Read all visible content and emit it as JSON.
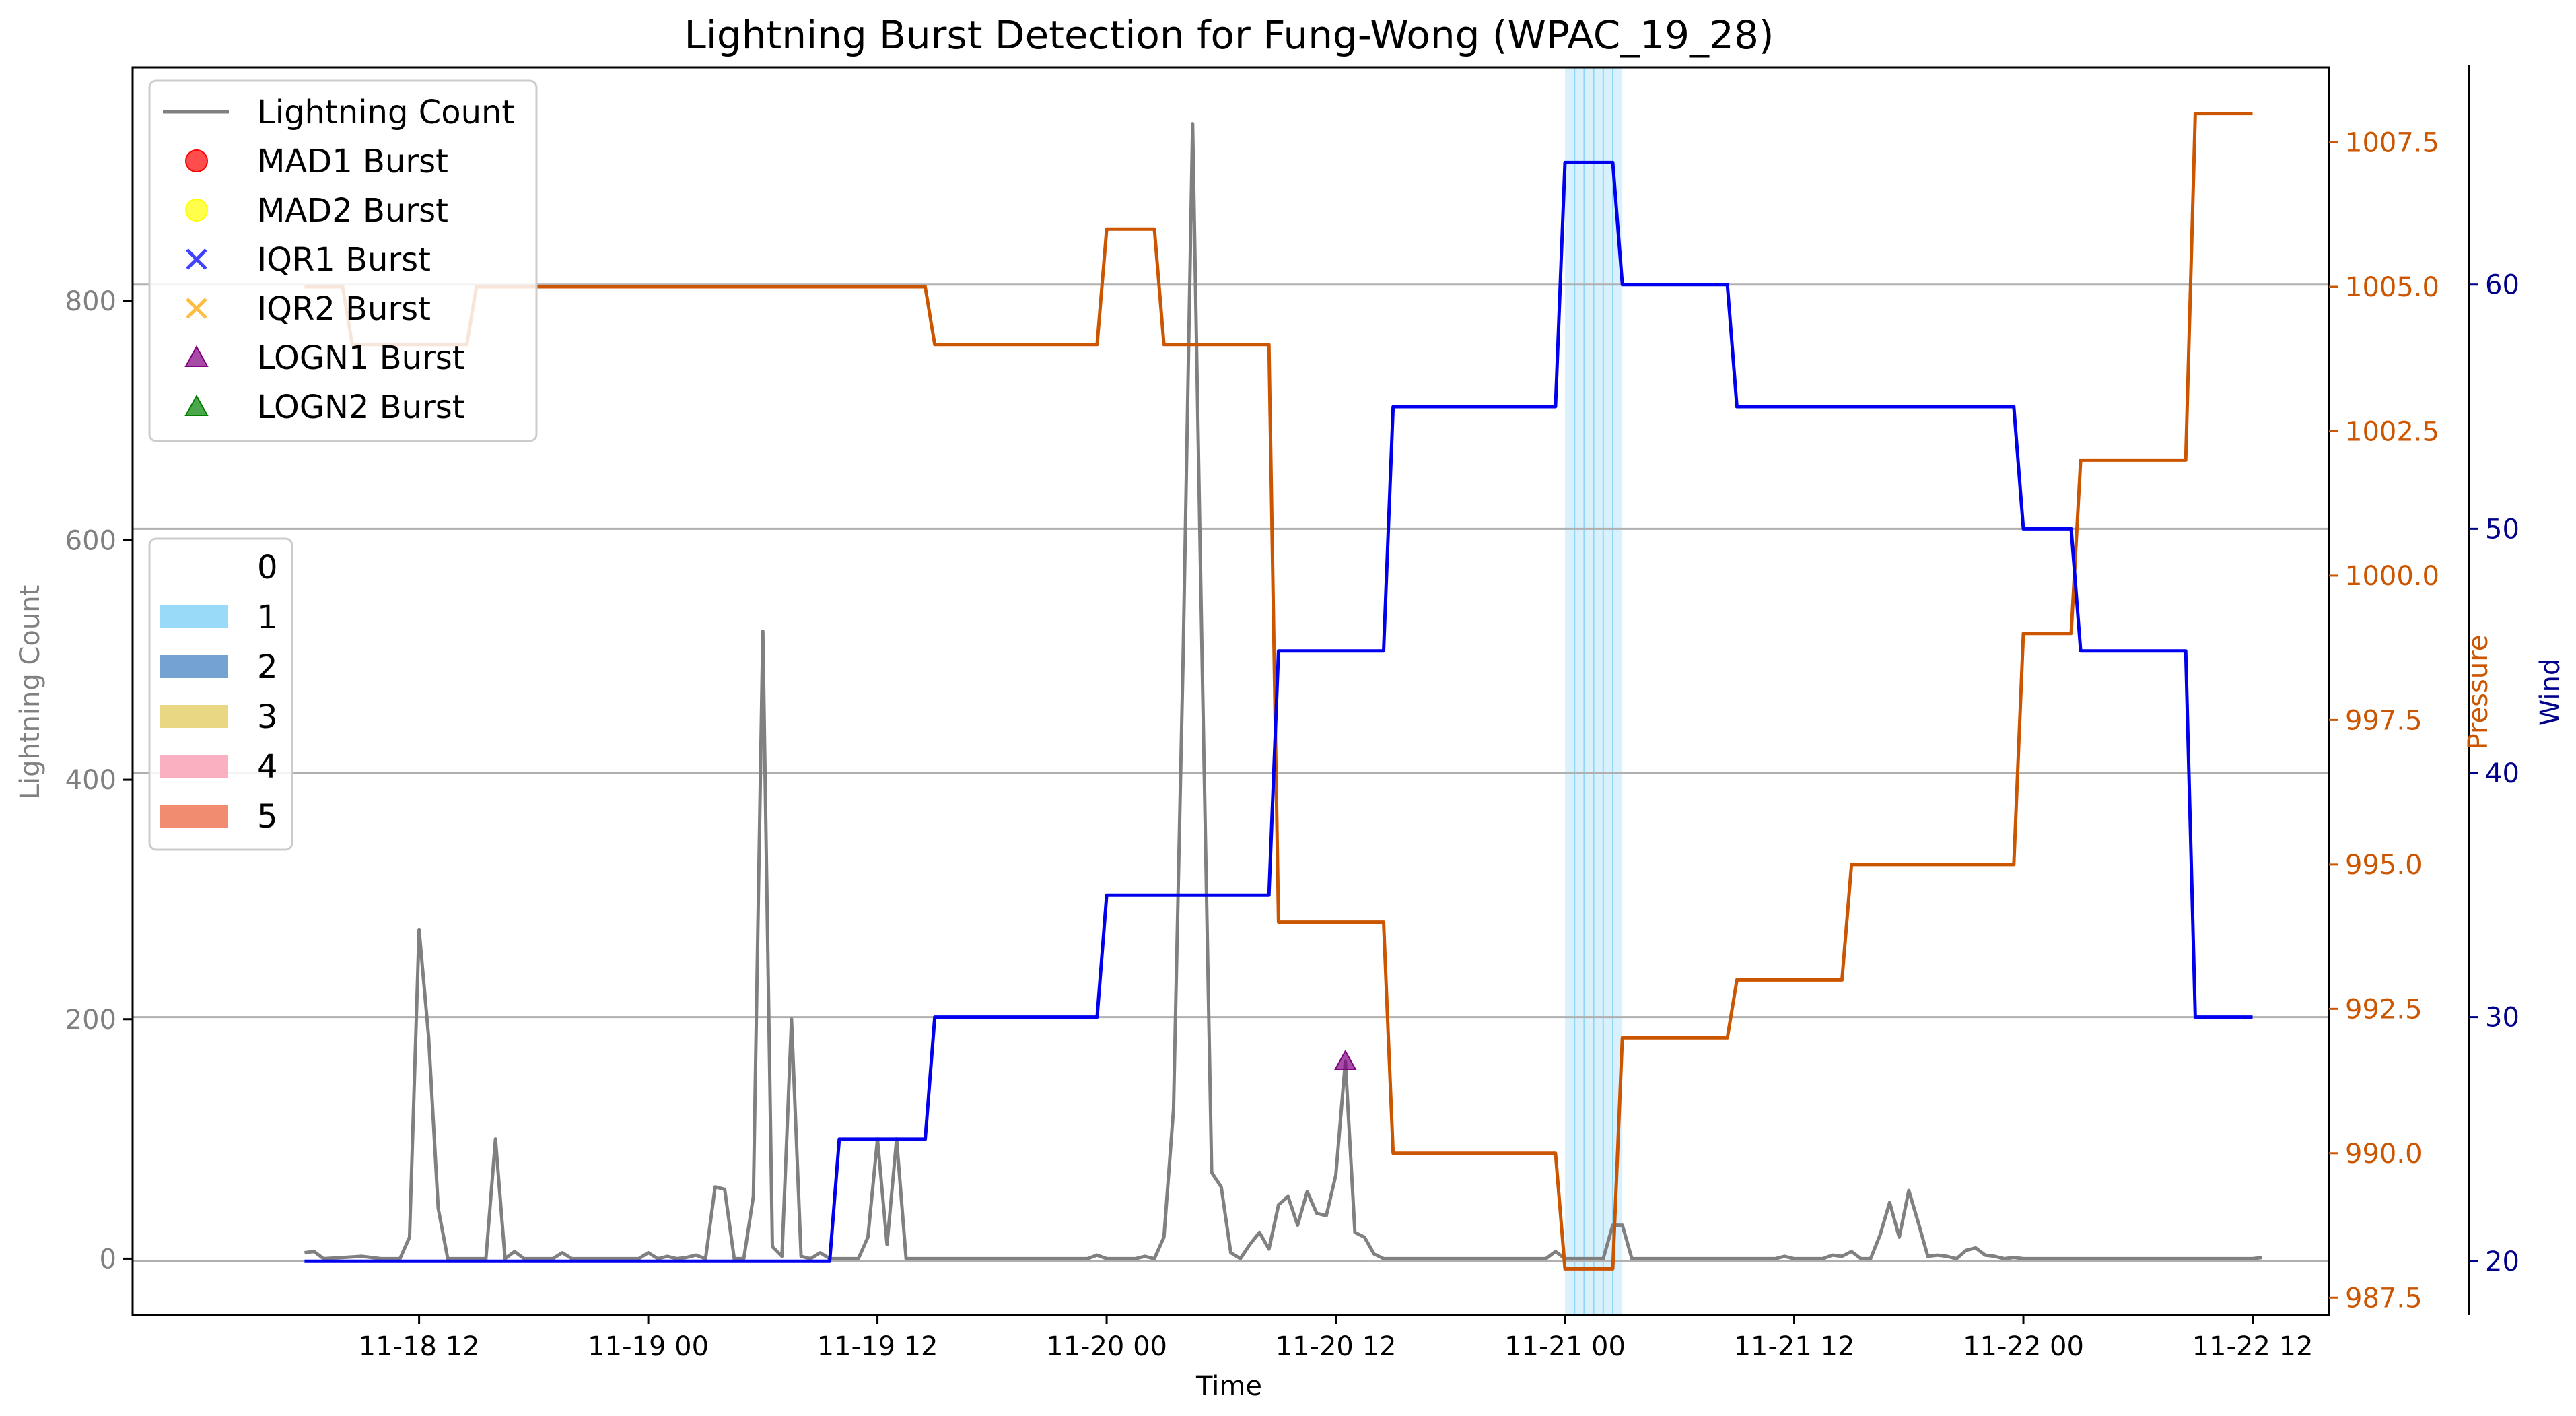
{
  "chart_data": {
    "type": "line",
    "title": "Lightning Burst Detection for Fung-Wong (WPAC_19_28)",
    "xlabel": "Time",
    "ylabel_left": "Lightning Count",
    "ylabel_pressure": "Pressure",
    "ylabel_wind": "Wind",
    "x_range": [
      "2019-11-17T21:00",
      "2019-11-22T16:00"
    ],
    "x_ticks": [
      {
        "t": "2019-11-18T12:00",
        "label": "11-18 12"
      },
      {
        "t": "2019-11-19T00:00",
        "label": "11-19 00"
      },
      {
        "t": "2019-11-19T12:00",
        "label": "11-19 12"
      },
      {
        "t": "2019-11-20T00:00",
        "label": "11-20 00"
      },
      {
        "t": "2019-11-20T12:00",
        "label": "11-20 12"
      },
      {
        "t": "2019-11-21T00:00",
        "label": "11-21 00"
      },
      {
        "t": "2019-11-21T12:00",
        "label": "11-21 12"
      },
      {
        "t": "2019-11-22T00:00",
        "label": "11-22 00"
      },
      {
        "t": "2019-11-22T12:00",
        "label": "11-22 12"
      }
    ],
    "ylim_count": [
      -47,
      995
    ],
    "yticks_count": [
      {
        "v": 0,
        "label": "0"
      },
      {
        "v": 200,
        "label": "200"
      },
      {
        "v": 400,
        "label": "400"
      },
      {
        "v": 600,
        "label": "600"
      },
      {
        "v": 800,
        "label": "800"
      }
    ],
    "ylim_pressure": [
      987.2,
      1008.8
    ],
    "yticks_pressure": [
      {
        "v": 987.5,
        "label": "987.5"
      },
      {
        "v": 990.0,
        "label": "990.0"
      },
      {
        "v": 992.5,
        "label": "992.5"
      },
      {
        "v": 995.0,
        "label": "995.0"
      },
      {
        "v": 997.5,
        "label": "997.5"
      },
      {
        "v": 1000.0,
        "label": "1000.0"
      },
      {
        "v": 1002.5,
        "label": "1002.5"
      },
      {
        "v": 1005.0,
        "label": "1005.0"
      },
      {
        "v": 1007.5,
        "label": "1007.5"
      }
    ],
    "ylim_wind": [
      17.8,
      68.9
    ],
    "yticks_wind": [
      {
        "v": 20,
        "label": "20"
      },
      {
        "v": 30,
        "label": "30"
      },
      {
        "v": 40,
        "label": "40"
      },
      {
        "v": 50,
        "label": "50"
      },
      {
        "v": 60,
        "label": "60"
      }
    ],
    "wind_grid_lines": [
      30,
      40,
      50,
      60
    ],
    "colors": {
      "lightning": "#808080",
      "pressure": "#cc5500",
      "wind": "#0000ee",
      "wind_axis_text": "#00008b",
      "category_1": "#8fd6f8",
      "grid": "#b0b0b0",
      "logn1_marker": "#800080"
    },
    "series": [
      {
        "name": "Lightning Count",
        "axis": "count",
        "points": [
          [
            "2019-11-18T06:00",
            5
          ],
          [
            "2019-11-18T06:30",
            6
          ],
          [
            "2019-11-18T07:00",
            0
          ],
          [
            "2019-11-18T09:00",
            2
          ],
          [
            "2019-11-18T10:00",
            0
          ],
          [
            "2019-11-18T11:00",
            0
          ],
          [
            "2019-11-18T11:30",
            18
          ],
          [
            "2019-11-18T12:00",
            275
          ],
          [
            "2019-11-18T12:30",
            185
          ],
          [
            "2019-11-18T13:00",
            42
          ],
          [
            "2019-11-18T13:30",
            0
          ],
          [
            "2019-11-18T15:30",
            0
          ],
          [
            "2019-11-18T16:00",
            100
          ],
          [
            "2019-11-18T16:30",
            0
          ],
          [
            "2019-11-18T17:00",
            6
          ],
          [
            "2019-11-18T17:30",
            0
          ],
          [
            "2019-11-18T19:00",
            0
          ],
          [
            "2019-11-18T19:30",
            5
          ],
          [
            "2019-11-18T20:00",
            0
          ],
          [
            "2019-11-18T23:30",
            0
          ],
          [
            "2019-11-19T00:00",
            5
          ],
          [
            "2019-11-19T00:30",
            0
          ],
          [
            "2019-11-19T01:00",
            2
          ],
          [
            "2019-11-19T01:30",
            0
          ],
          [
            "2019-11-19T02:00",
            1
          ],
          [
            "2019-11-19T02:30",
            3
          ],
          [
            "2019-11-19T03:00",
            0
          ],
          [
            "2019-11-19T03:30",
            60
          ],
          [
            "2019-11-19T04:00",
            58
          ],
          [
            "2019-11-19T04:30",
            0
          ],
          [
            "2019-11-19T05:00",
            0
          ],
          [
            "2019-11-19T05:30",
            52
          ],
          [
            "2019-11-19T06:00",
            524
          ],
          [
            "2019-11-19T06:30",
            10
          ],
          [
            "2019-11-19T07:00",
            2
          ],
          [
            "2019-11-19T07:30",
            200
          ],
          [
            "2019-11-19T08:00",
            2
          ],
          [
            "2019-11-19T08:30",
            0
          ],
          [
            "2019-11-19T09:00",
            5
          ],
          [
            "2019-11-19T09:30",
            0
          ],
          [
            "2019-11-19T11:00",
            0
          ],
          [
            "2019-11-19T11:30",
            18
          ],
          [
            "2019-11-19T12:00",
            100
          ],
          [
            "2019-11-19T12:30",
            12
          ],
          [
            "2019-11-19T13:00",
            100
          ],
          [
            "2019-11-19T13:30",
            0
          ],
          [
            "2019-11-19T23:00",
            0
          ],
          [
            "2019-11-19T23:30",
            3
          ],
          [
            "2019-11-20T00:00",
            0
          ],
          [
            "2019-11-20T01:30",
            0
          ],
          [
            "2019-11-20T02:00",
            2
          ],
          [
            "2019-11-20T02:30",
            0
          ],
          [
            "2019-11-20T03:00",
            18
          ],
          [
            "2019-11-20T03:30",
            125
          ],
          [
            "2019-11-20T04:00",
            500
          ],
          [
            "2019-11-20T04:30",
            948
          ],
          [
            "2019-11-20T05:00",
            500
          ],
          [
            "2019-11-20T05:30",
            72
          ],
          [
            "2019-11-20T06:00",
            60
          ],
          [
            "2019-11-20T06:30",
            5
          ],
          [
            "2019-11-20T07:00",
            0
          ],
          [
            "2019-11-20T07:30",
            12
          ],
          [
            "2019-11-20T08:00",
            22
          ],
          [
            "2019-11-20T08:30",
            8
          ],
          [
            "2019-11-20T09:00",
            45
          ],
          [
            "2019-11-20T09:30",
            52
          ],
          [
            "2019-11-20T10:00",
            28
          ],
          [
            "2019-11-20T10:30",
            56
          ],
          [
            "2019-11-20T11:00",
            38
          ],
          [
            "2019-11-20T11:30",
            36
          ],
          [
            "2019-11-20T12:00",
            70
          ],
          [
            "2019-11-20T12:30",
            165
          ],
          [
            "2019-11-20T13:00",
            22
          ],
          [
            "2019-11-20T13:30",
            18
          ],
          [
            "2019-11-20T14:00",
            4
          ],
          [
            "2019-11-20T14:30",
            0
          ],
          [
            "2019-11-20T23:00",
            0
          ],
          [
            "2019-11-20T23:30",
            6
          ],
          [
            "2019-11-21T00:00",
            0
          ],
          [
            "2019-11-21T02:00",
            0
          ],
          [
            "2019-11-21T02:30",
            28
          ],
          [
            "2019-11-21T03:00",
            28
          ],
          [
            "2019-11-21T03:30",
            0
          ],
          [
            "2019-11-21T11:00",
            0
          ],
          [
            "2019-11-21T11:30",
            2
          ],
          [
            "2019-11-21T12:00",
            0
          ],
          [
            "2019-11-21T13:30",
            0
          ],
          [
            "2019-11-21T14:00",
            3
          ],
          [
            "2019-11-21T14:30",
            2
          ],
          [
            "2019-11-21T15:00",
            6
          ],
          [
            "2019-11-21T15:30",
            0
          ],
          [
            "2019-11-21T16:00",
            0
          ],
          [
            "2019-11-21T16:30",
            20
          ],
          [
            "2019-11-21T17:00",
            47
          ],
          [
            "2019-11-21T17:30",
            18
          ],
          [
            "2019-11-21T18:00",
            57
          ],
          [
            "2019-11-21T18:30",
            30
          ],
          [
            "2019-11-21T19:00",
            2
          ],
          [
            "2019-11-21T19:30",
            3
          ],
          [
            "2019-11-21T20:00",
            2
          ],
          [
            "2019-11-21T20:30",
            0
          ],
          [
            "2019-11-21T21:00",
            7
          ],
          [
            "2019-11-21T21:30",
            9
          ],
          [
            "2019-11-21T22:00",
            3
          ],
          [
            "2019-11-21T22:30",
            2
          ],
          [
            "2019-11-21T23:00",
            0
          ],
          [
            "2019-11-21T23:30",
            1
          ],
          [
            "2019-11-22T00:00",
            0
          ],
          [
            "2019-11-22T12:00",
            0
          ],
          [
            "2019-11-22T12:30",
            1
          ]
        ]
      },
      {
        "name": "Pressure",
        "axis": "pressure",
        "points": [
          [
            "2019-11-18T06:00",
            1005.0
          ],
          [
            "2019-11-18T08:00",
            1005.0
          ],
          [
            "2019-11-18T08:30",
            1004.0
          ],
          [
            "2019-11-18T14:30",
            1004.0
          ],
          [
            "2019-11-18T15:00",
            1005.0
          ],
          [
            "2019-11-19T14:30",
            1005.0
          ],
          [
            "2019-11-19T15:00",
            1004.0
          ],
          [
            "2019-11-19T23:30",
            1004.0
          ],
          [
            "2019-11-20T00:00",
            1006.0
          ],
          [
            "2019-11-20T02:30",
            1006.0
          ],
          [
            "2019-11-20T03:00",
            1004.0
          ],
          [
            "2019-11-20T08:30",
            1004.0
          ],
          [
            "2019-11-20T09:00",
            994.0
          ],
          [
            "2019-11-20T14:30",
            994.0
          ],
          [
            "2019-11-20T15:00",
            990.0
          ],
          [
            "2019-11-20T23:30",
            990.0
          ],
          [
            "2019-11-21T00:00",
            988.0
          ],
          [
            "2019-11-21T02:30",
            988.0
          ],
          [
            "2019-11-21T03:00",
            992.0
          ],
          [
            "2019-11-21T08:30",
            992.0
          ],
          [
            "2019-11-21T09:00",
            993.0
          ],
          [
            "2019-11-21T14:30",
            993.0
          ],
          [
            "2019-11-21T15:00",
            995.0
          ],
          [
            "2019-11-21T23:30",
            995.0
          ],
          [
            "2019-11-22T00:00",
            999.0
          ],
          [
            "2019-11-22T02:30",
            999.0
          ],
          [
            "2019-11-22T03:00",
            1002.0
          ],
          [
            "2019-11-22T08:30",
            1002.0
          ],
          [
            "2019-11-22T09:00",
            1008.0
          ],
          [
            "2019-11-22T12:00",
            1008.0
          ]
        ]
      },
      {
        "name": "Wind",
        "axis": "wind",
        "points": [
          [
            "2019-11-18T06:00",
            20
          ],
          [
            "2019-11-19T09:30",
            20
          ],
          [
            "2019-11-19T10:00",
            25
          ],
          [
            "2019-11-19T14:30",
            25
          ],
          [
            "2019-11-19T15:00",
            30
          ],
          [
            "2019-11-19T23:30",
            30
          ],
          [
            "2019-11-20T00:00",
            35
          ],
          [
            "2019-11-20T08:30",
            35
          ],
          [
            "2019-11-20T09:00",
            45
          ],
          [
            "2019-11-20T14:30",
            45
          ],
          [
            "2019-11-20T15:00",
            55
          ],
          [
            "2019-11-20T23:30",
            55
          ],
          [
            "2019-11-21T00:00",
            65
          ],
          [
            "2019-11-21T02:30",
            65
          ],
          [
            "2019-11-21T03:00",
            60
          ],
          [
            "2019-11-21T08:30",
            60
          ],
          [
            "2019-11-21T09:00",
            55
          ],
          [
            "2019-11-21T23:30",
            55
          ],
          [
            "2019-11-22T00:00",
            50
          ],
          [
            "2019-11-22T02:30",
            50
          ],
          [
            "2019-11-22T03:00",
            45
          ],
          [
            "2019-11-22T08:30",
            45
          ],
          [
            "2019-11-22T09:00",
            30
          ],
          [
            "2019-11-22T12:00",
            30
          ]
        ]
      }
    ],
    "category_spans": [
      {
        "category": 1,
        "start": "2019-11-21T00:00",
        "end": "2019-11-21T03:00"
      }
    ],
    "burst_markers": [
      {
        "name": "LOGN1 Burst",
        "t": "2019-11-20T12:30",
        "value": 165
      }
    ],
    "legend_top": {
      "placement": "upper-left",
      "entries": [
        {
          "label": "Lightning Count",
          "symbol": "line",
          "color": "#808080"
        },
        {
          "label": "MAD1 Burst",
          "symbol": "circle",
          "color": "#ff0000"
        },
        {
          "label": "MAD2 Burst",
          "symbol": "circle",
          "color": "#ffff00"
        },
        {
          "label": "IQR1 Burst",
          "symbol": "x",
          "color": "#0000ff"
        },
        {
          "label": "IQR2 Burst",
          "symbol": "x",
          "color": "#ffa500"
        },
        {
          "label": "LOGN1 Burst",
          "symbol": "triangle",
          "color": "#800080"
        },
        {
          "label": "LOGN2 Burst",
          "symbol": "triangle",
          "color": "#008000"
        }
      ]
    },
    "legend_category": {
      "placement": "center-left",
      "entries": [
        {
          "label": "0",
          "color": "#ffffff"
        },
        {
          "label": "1",
          "color": "#8fd6f8"
        },
        {
          "label": "2",
          "color": "#6699cc"
        },
        {
          "label": "3",
          "color": "#e8d377"
        },
        {
          "label": "4",
          "color": "#f9a7b9"
        },
        {
          "label": "5",
          "color": "#f08060"
        }
      ]
    }
  }
}
